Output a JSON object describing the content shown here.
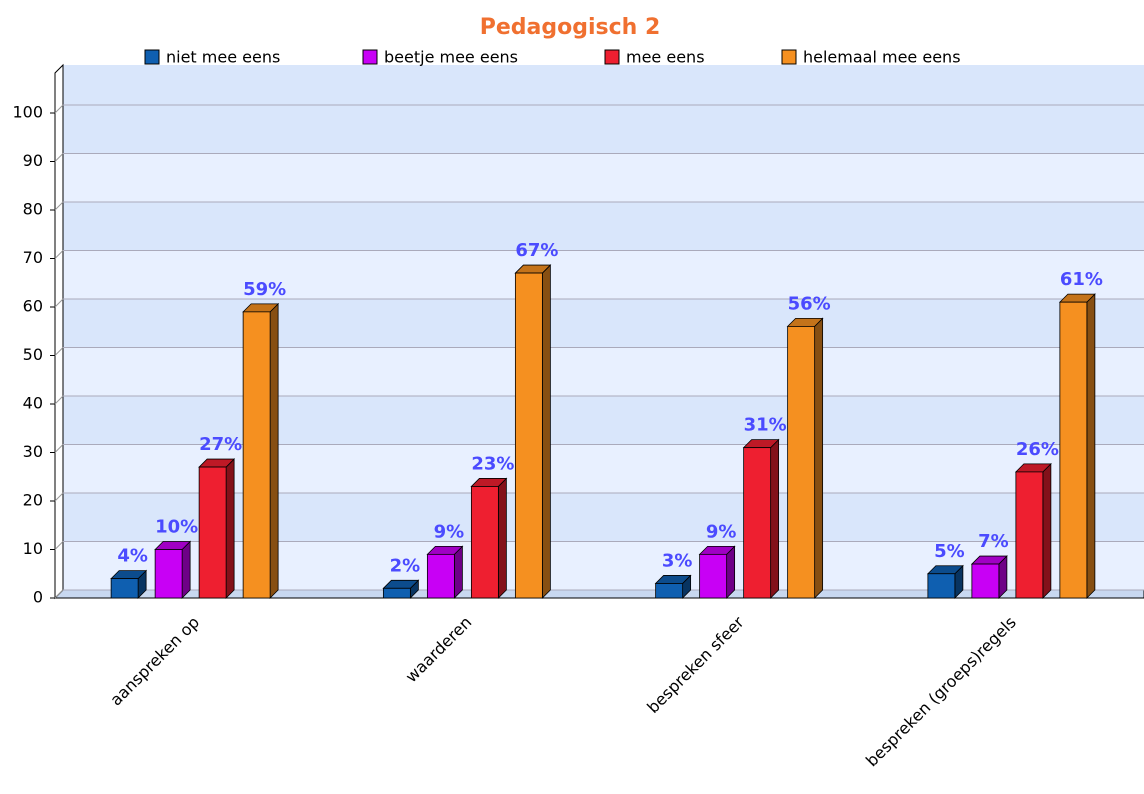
{
  "chart_data": {
    "type": "bar3d",
    "title": "Pedagogisch 2",
    "categories": [
      "aanspreken op",
      "waarderen",
      "bespreken sfeer",
      "bespreken (groeps)regels"
    ],
    "series": [
      {
        "name": "niet mee eens",
        "color": "#0f5fb0",
        "values": [
          4,
          2,
          3,
          5
        ],
        "value_labels": [
          "4%",
          "2%",
          "3%",
          "5%"
        ]
      },
      {
        "name": "beetje mee eens",
        "color": "#c800f5",
        "values": [
          10,
          9,
          9,
          7
        ],
        "value_labels": [
          "10%",
          "9%",
          "9%",
          "7%"
        ]
      },
      {
        "name": "mee eens",
        "color": "#ee1f30",
        "values": [
          27,
          23,
          31,
          26
        ],
        "value_labels": [
          "27%",
          "23%",
          "31%",
          "26%"
        ]
      },
      {
        "name": "helemaal mee eens",
        "color": "#f59020",
        "values": [
          59,
          67,
          56,
          61
        ],
        "value_labels": [
          "59%",
          "67%",
          "56%",
          "61%"
        ]
      }
    ],
    "ylim": [
      0,
      100
    ],
    "yticks": [
      0,
      10,
      20,
      30,
      40,
      50,
      60,
      70,
      80,
      90,
      100
    ],
    "grid": true
  }
}
